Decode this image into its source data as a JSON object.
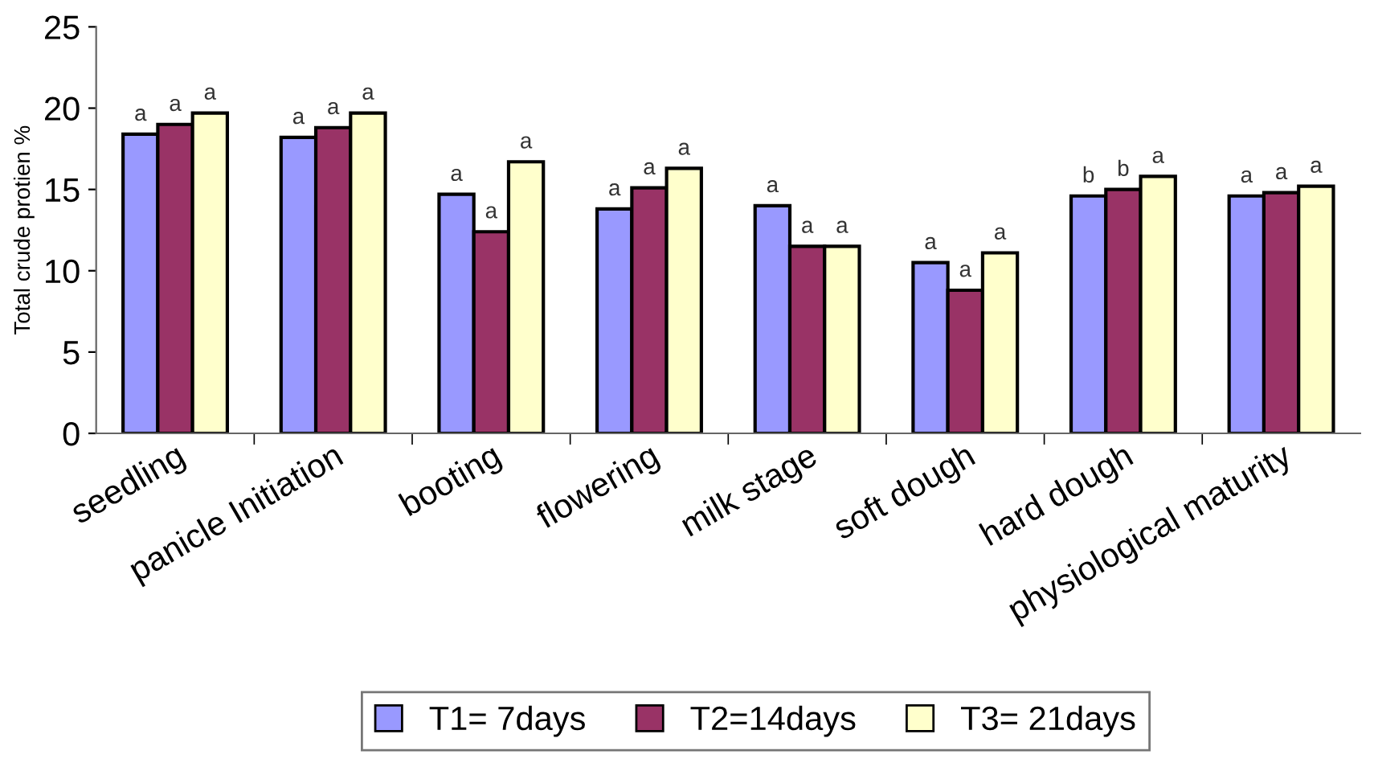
{
  "chart_data": {
    "type": "bar",
    "ylabel": "Total crude protien %",
    "categories": [
      "seedling",
      "panicle Initiation",
      "booting",
      "flowering",
      "milk stage",
      "soft dough",
      "hard dough",
      "physiological maturity"
    ],
    "series": [
      {
        "name": "T1= 7days",
        "color": "#9999ff",
        "values": [
          18.4,
          18.2,
          14.7,
          13.8,
          14.0,
          10.5,
          14.6,
          14.6
        ],
        "value_labels": [
          "a",
          "a",
          "a",
          "a",
          "a",
          "a",
          "b",
          "a"
        ]
      },
      {
        "name": "T2=14days",
        "color": "#993366",
        "values": [
          19.0,
          18.8,
          12.4,
          15.1,
          11.5,
          8.8,
          15.0,
          14.8
        ],
        "value_labels": [
          "a",
          "a",
          "a",
          "a",
          "a",
          "a",
          "b",
          "a"
        ]
      },
      {
        "name": "T3= 21days",
        "color": "#ffffcc",
        "values": [
          19.7,
          19.7,
          16.7,
          16.3,
          11.5,
          11.1,
          15.8,
          15.2
        ],
        "value_labels": [
          "a",
          "a",
          "a",
          "a",
          "a",
          "a",
          "a",
          "a"
        ]
      }
    ],
    "ylim": [
      0,
      25
    ],
    "yticks": [
      0,
      5,
      10,
      15,
      20,
      25
    ],
    "grid": false,
    "legend": "bottom"
  }
}
